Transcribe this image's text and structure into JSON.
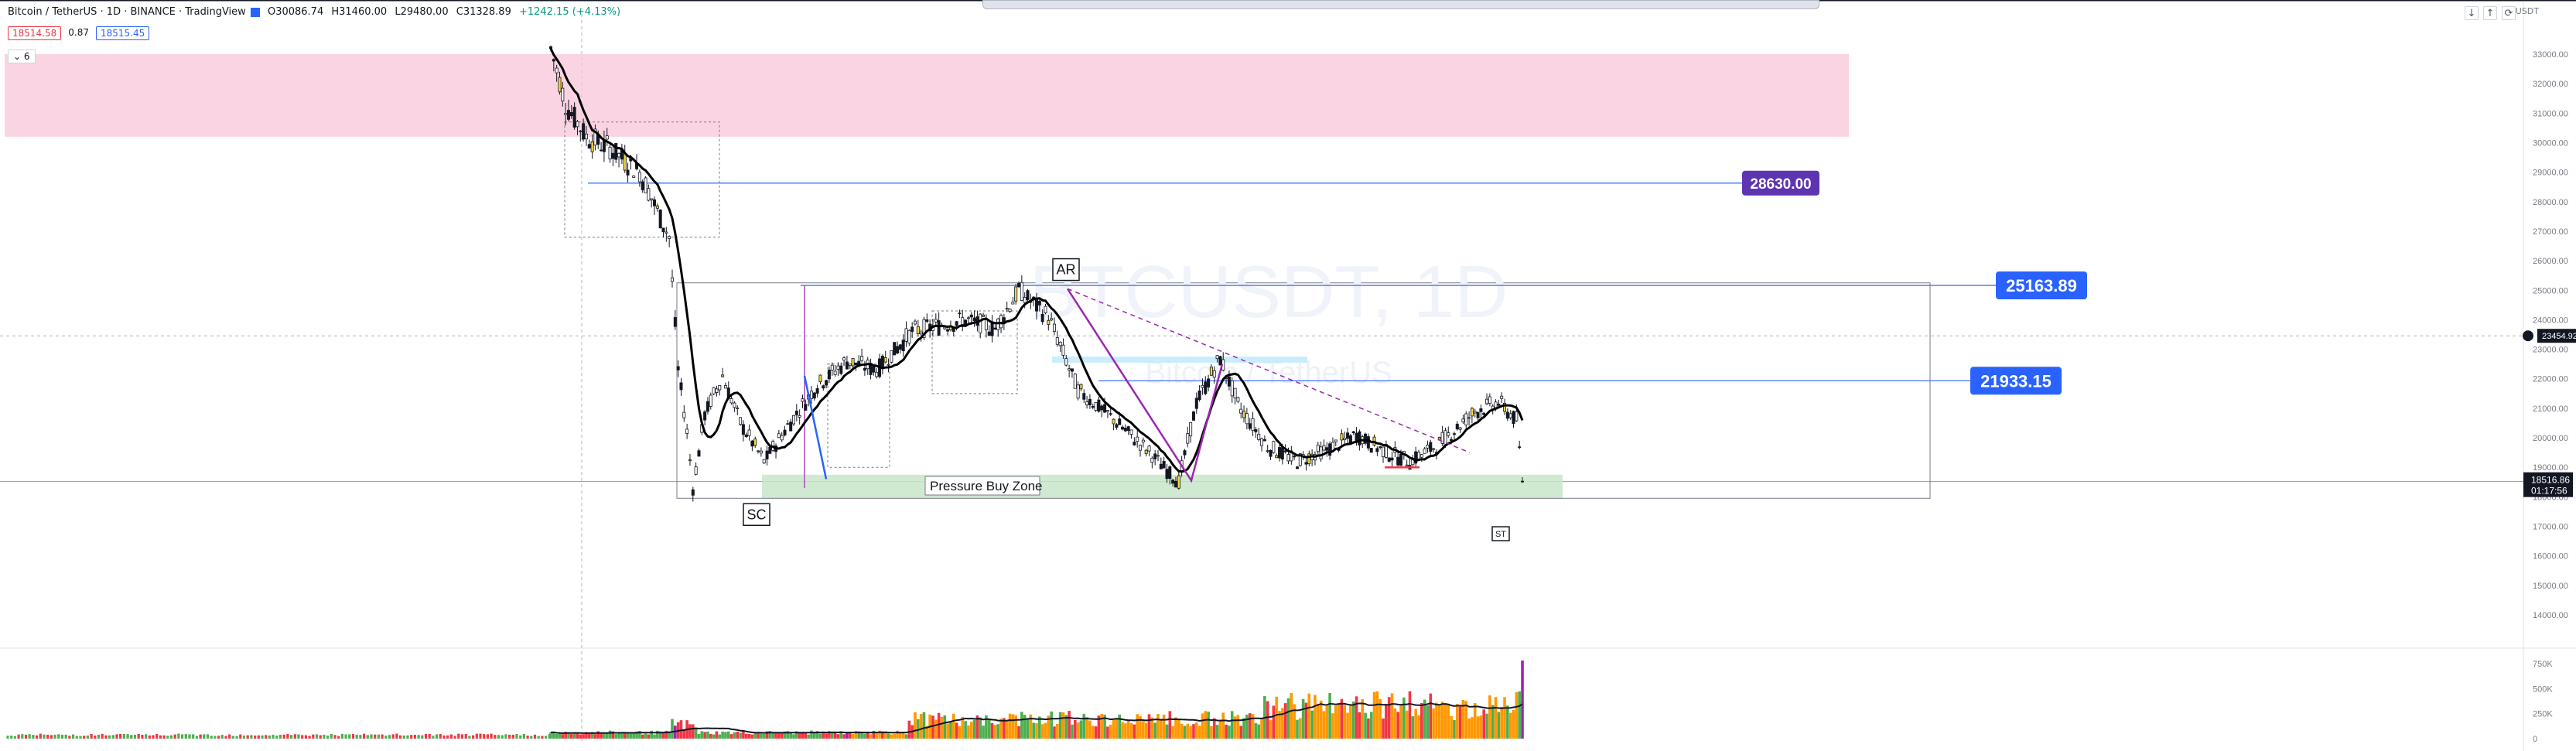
{
  "legend": {
    "symbol": "Bitcoin / TetherUS · 1D · BINANCE · TradingView",
    "open_label": "O",
    "open": "30086.74",
    "high_label": "H",
    "high": "31460.00",
    "low_label": "L",
    "low": "29480.00",
    "close_label": "C",
    "close": "31328.89",
    "change": "+1242.15 (+4.13%)",
    "sell_price": "18514.58",
    "spread": "0.87",
    "buy_price": "18515.45",
    "indicator_count": "6"
  },
  "axis": {
    "currency": "USDT",
    "current_price": "18516.86",
    "countdown": "01:17:56",
    "crosshair_price": "23454.92"
  },
  "window_controls": [
    "↓",
    "↑",
    "⟳"
  ],
  "colors": {
    "bullish": "#089981",
    "bearish": "#f23645",
    "resistance_zone": "#f8c6d8",
    "pressure_zone": "#c8e6c9",
    "price_label_blue": "#2962ff",
    "price_label_purple": "#5e35b1",
    "ma_line": "#000000",
    "volume_orange": "#ff9800",
    "volume_red": "#f23645",
    "volume_green": "#4caf50",
    "volume_purple": "#9c27b0"
  },
  "watermark": {
    "symbol": "BTCUSDT, 1D",
    "name": "Bitcoin / TetherUS"
  },
  "chart_data": {
    "type": "candlestick",
    "title": "",
    "y_ticks": [
      33000,
      32000,
      31000,
      30000,
      29000,
      28000,
      27000,
      26000,
      25000,
      24000,
      23000,
      22000,
      21000,
      20000,
      19000,
      18000,
      17000,
      16000,
      15000,
      14000
    ],
    "ylim": [
      13200,
      33600
    ],
    "volume_ticks": [
      "750K",
      "500K",
      "250K",
      "0"
    ],
    "volume_tick_values": [
      750000,
      500000,
      250000,
      0
    ],
    "volume_max": 850000,
    "horizontal_levels": [
      {
        "price": "28630.00",
        "value": 28630,
        "label_color": "#5e35b1"
      },
      {
        "price": "25163.89",
        "value": 25163.89,
        "label_color": "#2962ff"
      },
      {
        "price": "21933.15",
        "value": 21933.15,
        "label_color": "#2962ff"
      }
    ],
    "zones": [
      {
        "name": "resistance",
        "low": 30200,
        "high": 33000
      },
      {
        "name": "Pressure Buy Zone",
        "label": "Pressure Buy Zone",
        "low": 17950,
        "high": 18750
      }
    ],
    "annotations": [
      {
        "text": "AR",
        "price": 25700
      },
      {
        "text": "SC",
        "price": 17400
      },
      {
        "text": "ST",
        "price": 16750
      }
    ],
    "candle_count": 290,
    "series_note": "",
    "keypoints": [
      [
        0,
        33200
      ],
      [
        5,
        31300
      ],
      [
        12,
        30200
      ],
      [
        20,
        29800
      ],
      [
        30,
        29000
      ],
      [
        40,
        26800
      ],
      [
        43,
        22300
      ],
      [
        46,
        20200
      ],
      [
        48,
        18300
      ],
      [
        52,
        20800
      ],
      [
        58,
        22100
      ],
      [
        64,
        20500
      ],
      [
        72,
        19200
      ],
      [
        80,
        20400
      ],
      [
        90,
        21800
      ],
      [
        100,
        22600
      ],
      [
        110,
        22300
      ],
      [
        122,
        23600
      ],
      [
        140,
        24000
      ],
      [
        150,
        23700
      ],
      [
        158,
        25000
      ],
      [
        168,
        24100
      ],
      [
        178,
        21600
      ],
      [
        188,
        20800
      ],
      [
        200,
        19700
      ],
      [
        212,
        18500
      ],
      [
        218,
        21200
      ],
      [
        226,
        22700
      ],
      [
        232,
        21100
      ],
      [
        242,
        19700
      ],
      [
        252,
        19200
      ],
      [
        262,
        19600
      ],
      [
        272,
        20100
      ],
      [
        282,
        19500
      ],
      [
        290,
        19200
      ],
      [
        300,
        19800
      ],
      [
        312,
        20900
      ],
      [
        320,
        21200
      ],
      [
        326,
        20600
      ],
      [
        328,
        18516.86
      ]
    ]
  }
}
